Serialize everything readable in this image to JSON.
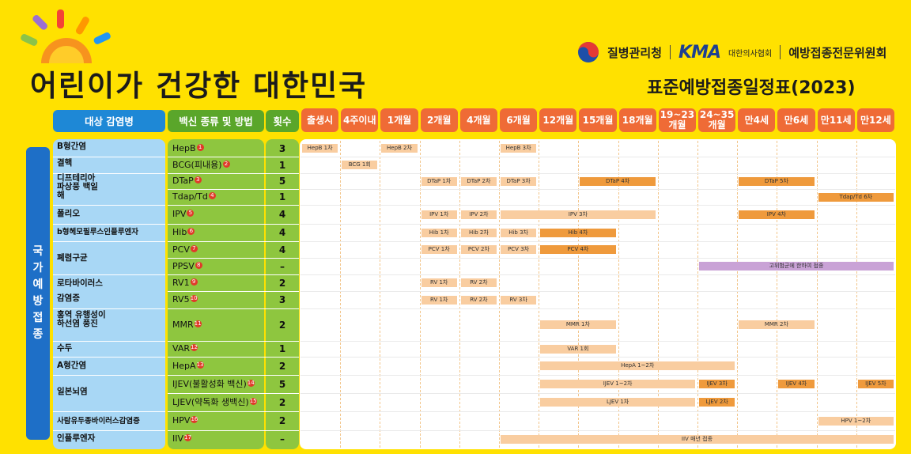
{
  "header": {
    "slogan": "어린이가 건강한 대한민국",
    "logo_kdca": "질병관리청",
    "logo_kma": "KMA",
    "logo_kma_sub": "대한의사협회",
    "logo_committee": "예방접종전문위원회",
    "schedule_title": "표준예방접종일정표(2023)"
  },
  "columns": {
    "disease": "대상 감염병",
    "vaccine": "백신 종류 및 방법",
    "doses": "횟수",
    "ages": [
      "출생시",
      "4주이내",
      "1개월",
      "2개월",
      "4개월",
      "6개월",
      "12개월",
      "15개월",
      "18개월",
      "19~23 개월",
      "24~35 개월",
      "만4세",
      "만6세",
      "만11세",
      "만12세"
    ]
  },
  "national_label": "국가예방접종",
  "diseases": [
    {
      "name": "B형간염"
    },
    {
      "name": "결핵"
    },
    {
      "name": "디프테리아 파상풍 백일해"
    },
    {
      "name": "폴리오"
    },
    {
      "name": "b형헤모필루스인플루엔자"
    },
    {
      "name": "폐렴구균"
    },
    {
      "name": "로타바이러스"
    },
    {
      "name": "감염증"
    },
    {
      "name": "홍역 유행성이하선염 풍진"
    },
    {
      "name": "수두"
    },
    {
      "name": "A형간염"
    },
    {
      "name": "일본뇌염"
    },
    {
      "name": "사람유두종바이러스감염증"
    },
    {
      "name": "인플루엔자"
    }
  ],
  "vaccines": [
    {
      "name": "HepB",
      "note": "1",
      "doses": "3"
    },
    {
      "name": "BCG(피내용)",
      "note": "2",
      "doses": "1"
    },
    {
      "name": "DTaP",
      "note": "3",
      "doses": "5"
    },
    {
      "name": "Tdap/Td",
      "note": "4",
      "doses": "1"
    },
    {
      "name": "IPV",
      "note": "5",
      "doses": "4"
    },
    {
      "name": "Hib",
      "note": "6",
      "doses": "4"
    },
    {
      "name": "PCV",
      "note": "7",
      "doses": "4"
    },
    {
      "name": "PPSV",
      "note": "8",
      "doses": "–"
    },
    {
      "name": "RV1",
      "note": "9",
      "doses": "2"
    },
    {
      "name": "RV5",
      "note": "10",
      "doses": "3"
    },
    {
      "name": "MMR",
      "note": "11",
      "doses": "2"
    },
    {
      "name": "VAR",
      "note": "12",
      "doses": "1"
    },
    {
      "name": "HepA",
      "note": "13",
      "doses": "2"
    },
    {
      "name": "IJEV(불활성화 백신)",
      "note": "14",
      "doses": "5"
    },
    {
      "name": "LJEV(약독화 생백신)",
      "note": "15",
      "doses": "2"
    },
    {
      "name": "HPV",
      "note": "16",
      "doses": "2"
    },
    {
      "name": "IIV",
      "note": "17",
      "doses": "–"
    }
  ],
  "bars": [
    {
      "row": 0,
      "from": 0,
      "to": 1,
      "label": "HepB 1차",
      "style": "light"
    },
    {
      "row": 0,
      "from": 2,
      "to": 3,
      "label": "HepB 2차",
      "style": "light"
    },
    {
      "row": 0,
      "from": 5,
      "to": 6,
      "label": "HepB 3차",
      "style": "light"
    },
    {
      "row": 1,
      "from": 1,
      "to": 2,
      "label": "BCG 1회",
      "style": "light"
    },
    {
      "row": 2,
      "from": 3,
      "to": 4,
      "label": "DTaP 1차",
      "style": "light"
    },
    {
      "row": 2,
      "from": 4,
      "to": 5,
      "label": "DTaP 2차",
      "style": "light"
    },
    {
      "row": 2,
      "from": 5,
      "to": 6,
      "label": "DTaP 3차",
      "style": "light"
    },
    {
      "row": 2,
      "from": 7,
      "to": 9,
      "label": "DTaP 4차",
      "style": "dark"
    },
    {
      "row": 2,
      "from": 11,
      "to": 13,
      "label": "DTaP 5차",
      "style": "dark"
    },
    {
      "row": 3,
      "from": 13,
      "to": 15,
      "label": "Tdap/Td 6차",
      "style": "dark"
    },
    {
      "row": 4,
      "from": 3,
      "to": 4,
      "label": "IPV 1차",
      "style": "light"
    },
    {
      "row": 4,
      "from": 4,
      "to": 5,
      "label": "IPV 2차",
      "style": "light"
    },
    {
      "row": 4,
      "from": 5,
      "to": 9,
      "label": "IPV 3차",
      "style": "light"
    },
    {
      "row": 4,
      "from": 11,
      "to": 13,
      "label": "IPV 4차",
      "style": "dark"
    },
    {
      "row": 5,
      "from": 3,
      "to": 4,
      "label": "Hib 1차",
      "style": "light"
    },
    {
      "row": 5,
      "from": 4,
      "to": 5,
      "label": "Hib 2차",
      "style": "light"
    },
    {
      "row": 5,
      "from": 5,
      "to": 6,
      "label": "Hib 3차",
      "style": "light"
    },
    {
      "row": 5,
      "from": 6,
      "to": 8,
      "label": "Hib 4차",
      "style": "dark"
    },
    {
      "row": 6,
      "from": 3,
      "to": 4,
      "label": "PCV 1차",
      "style": "light"
    },
    {
      "row": 6,
      "from": 4,
      "to": 5,
      "label": "PCV 2차",
      "style": "light"
    },
    {
      "row": 6,
      "from": 5,
      "to": 6,
      "label": "PCV 3차",
      "style": "light"
    },
    {
      "row": 6,
      "from": 6,
      "to": 8,
      "label": "PCV 4차",
      "style": "dark"
    },
    {
      "row": 7,
      "from": 10,
      "to": 15,
      "label": "고위험군에 한하여 접종",
      "style": "purple"
    },
    {
      "row": 8,
      "from": 3,
      "to": 4,
      "label": "RV 1차",
      "style": "light"
    },
    {
      "row": 8,
      "from": 4,
      "to": 5,
      "label": "RV 2차",
      "style": "light"
    },
    {
      "row": 9,
      "from": 3,
      "to": 4,
      "label": "RV 1차",
      "style": "light"
    },
    {
      "row": 9,
      "from": 4,
      "to": 5,
      "label": "RV 2차",
      "style": "light"
    },
    {
      "row": 9,
      "from": 5,
      "to": 6,
      "label": "RV 3차",
      "style": "light"
    },
    {
      "row": 10,
      "from": 6,
      "to": 8,
      "label": "MMR 1차",
      "style": "light"
    },
    {
      "row": 10,
      "from": 11,
      "to": 13,
      "label": "MMR 2차",
      "style": "light"
    },
    {
      "row": 11,
      "from": 6,
      "to": 8,
      "label": "VAR 1회",
      "style": "light"
    },
    {
      "row": 12,
      "from": 6,
      "to": 11,
      "label": "HepA 1~2차",
      "style": "light"
    },
    {
      "row": 13,
      "from": 6,
      "to": 10,
      "label": "IJEV 1~2차",
      "style": "light"
    },
    {
      "row": 13,
      "from": 10,
      "to": 11,
      "label": "IJEV 3차",
      "style": "dark"
    },
    {
      "row": 13,
      "from": 12,
      "to": 13,
      "label": "IJEV 4차",
      "style": "dark"
    },
    {
      "row": 13,
      "from": 14,
      "to": 15,
      "label": "IJEV 5차",
      "style": "dark"
    },
    {
      "row": 14,
      "from": 6,
      "to": 10,
      "label": "LJEV 1차",
      "style": "light"
    },
    {
      "row": 14,
      "from": 10,
      "to": 11,
      "label": "LJEV 2차",
      "style": "dark"
    },
    {
      "row": 15,
      "from": 13,
      "to": 15,
      "label": "HPV 1~2차",
      "style": "light"
    },
    {
      "row": 16,
      "from": 5,
      "to": 15,
      "label": "IIV 매년 접종",
      "style": "light"
    }
  ]
}
